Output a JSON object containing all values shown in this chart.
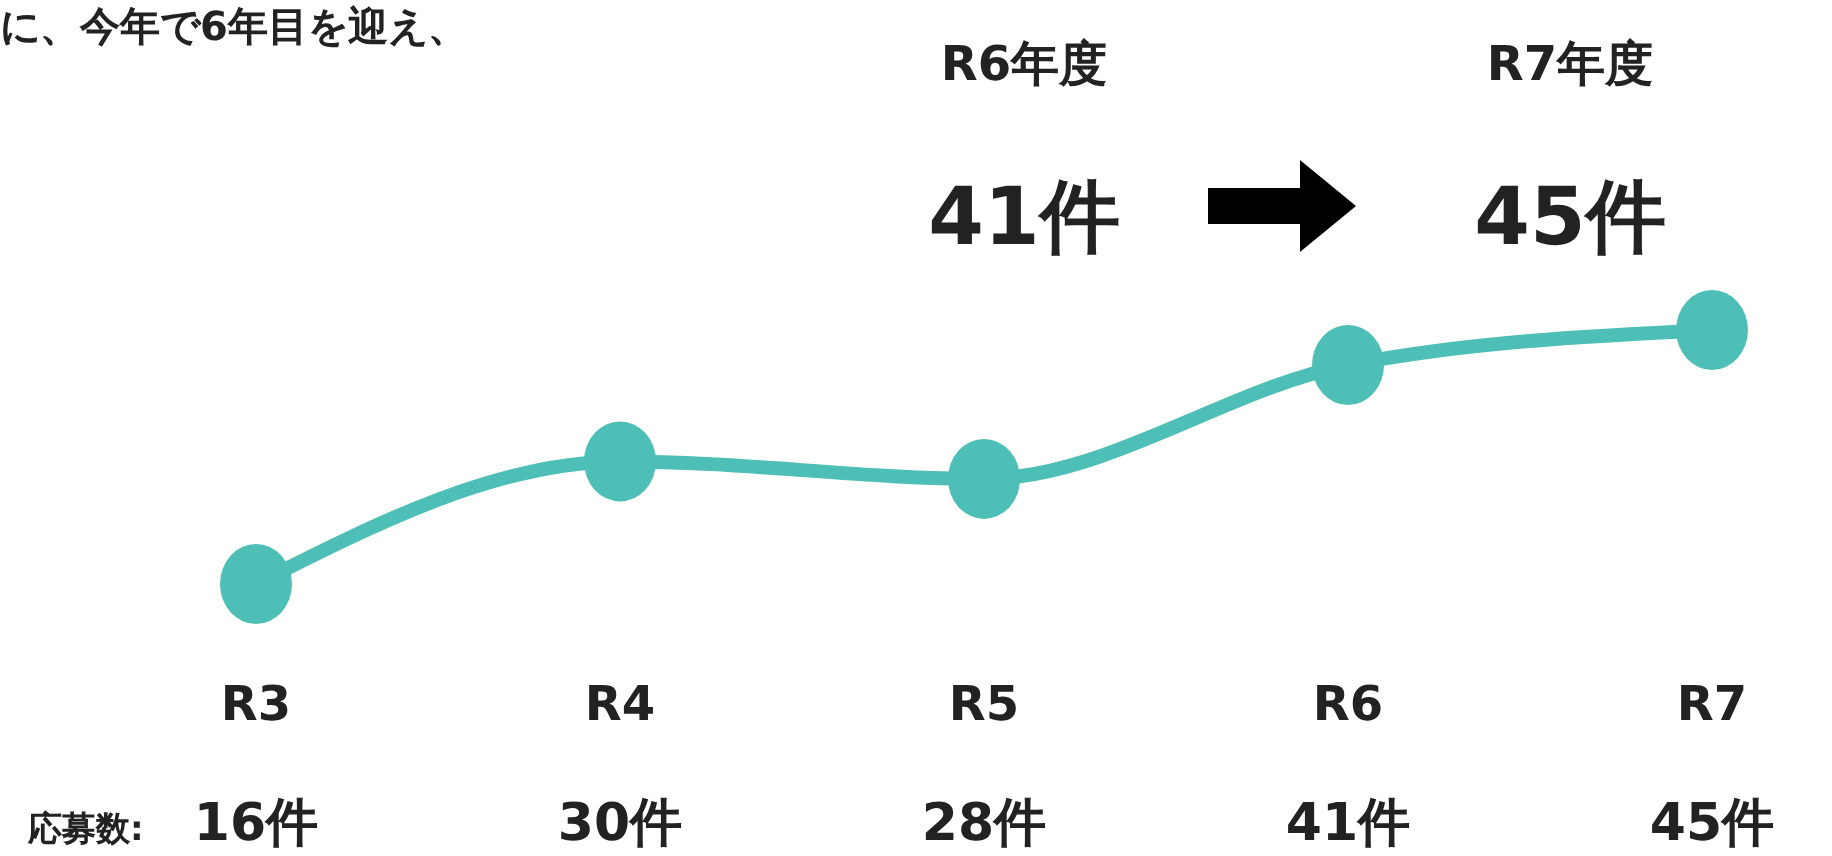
{
  "chart_data": {
    "type": "line",
    "categories": [
      "R3",
      "R4",
      "R5",
      "R6",
      "R7"
    ],
    "series": [
      {
        "color": "#4dbfb6",
        "values": [
          16,
          30,
          28,
          41,
          45
        ],
        "value_labels": [
          "16件",
          "30件",
          "28件",
          "41件",
          "45件"
        ]
      }
    ],
    "marker": "circle",
    "tick_labels": "x",
    "annotations": [
      "に、今年で6年目を迎え、",
      "R6年度",
      "41件",
      "R7年度",
      "45件",
      "応募数:"
    ]
  }
}
